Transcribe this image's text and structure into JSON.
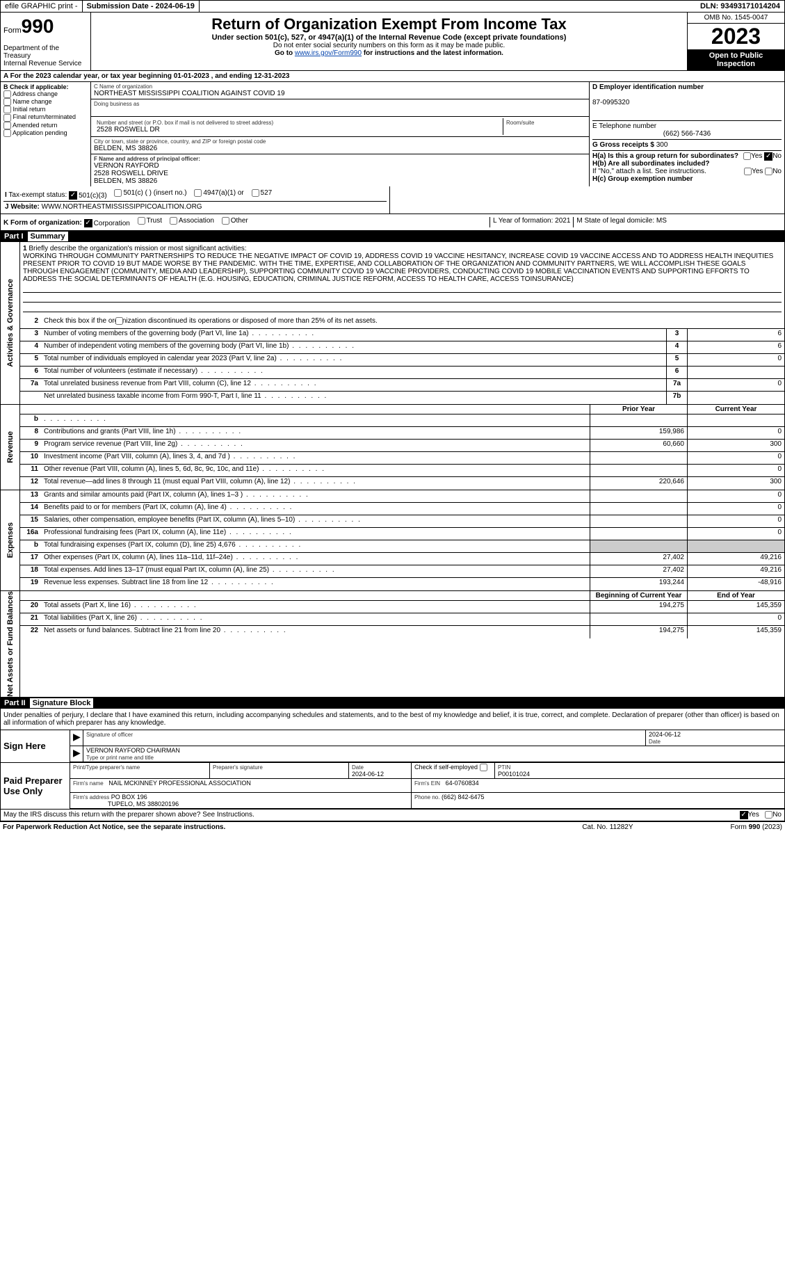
{
  "topbar": {
    "efile": "efile GRAPHIC print -",
    "submission": "Submission Date - 2024-06-19",
    "dln_label": "DLN:",
    "dln": "93493171014204"
  },
  "header": {
    "form_label": "Form",
    "form_num": "990",
    "dept": "Department of the Treasury\nInternal Revenue Service",
    "title": "Return of Organization Exempt From Income Tax",
    "sub": "Under section 501(c), 527, or 4947(a)(1) of the Internal Revenue Code (except private foundations)",
    "note1": "Do not enter social security numbers on this form as it may be made public.",
    "note2_pre": "Go to ",
    "note2_link": "www.irs.gov/Form990",
    "note2_post": " for instructions and the latest information.",
    "omb": "OMB No. 1545-0047",
    "year": "2023",
    "open": "Open to Public Inspection"
  },
  "rowA": "A For the 2023 calendar year, or tax year beginning 01-01-2023    , and ending 12-31-2023",
  "boxB": {
    "title": "B Check if applicable:",
    "items": [
      "Address change",
      "Name change",
      "Initial return",
      "Final return/terminated",
      "Amended return",
      "Application pending"
    ]
  },
  "boxC": {
    "name_lbl": "C Name of organization",
    "name": "NORTHEAST MISSISSIPPI COALITION AGAINST COVID 19",
    "dba_lbl": "Doing business as",
    "street_lbl": "Number and street (or P.O. box if mail is not delivered to street address)",
    "street": "2528 ROSWELL DR",
    "room_lbl": "Room/suite",
    "city_lbl": "City or town, state or province, country, and ZIP or foreign postal code",
    "city": "BELDEN, MS  38826"
  },
  "boxD": {
    "lbl": "D Employer identification number",
    "val": "87-0995320"
  },
  "boxE": {
    "lbl": "E Telephone number",
    "val": "(662) 566-7436"
  },
  "boxG": {
    "lbl": "G Gross receipts $",
    "val": "300"
  },
  "boxF": {
    "lbl": "F Name and address of principal officer:",
    "name": "VERNON RAYFORD",
    "addr1": "2528 ROSWELL DRIVE",
    "addr2": "BELDEN, MS  38826"
  },
  "boxH": {
    "a": "H(a)  Is this a group return for subordinates?",
    "b": "H(b)  Are all subordinates included?",
    "b_note": "If \"No,\" attach a list. See instructions.",
    "c": "H(c)  Group exemption number",
    "yes": "Yes",
    "no": "No"
  },
  "rowI": {
    "lbl": "Tax-exempt status:",
    "o1": "501(c)(3)",
    "o2": "501(c) (  ) (insert no.)",
    "o3": "4947(a)(1) or",
    "o4": "527"
  },
  "rowJ": {
    "lbl": "Website:",
    "val": "WWW.NORTHEASTMISSISSIPPICOALITION.ORG"
  },
  "rowK": {
    "lbl": "K Form of organization:",
    "o1": "Corporation",
    "o2": "Trust",
    "o3": "Association",
    "o4": "Other",
    "L": "L Year of formation: 2021",
    "M": "M State of legal domicile: MS"
  },
  "part1": {
    "hdr": "Part I",
    "title": "Summary",
    "vlab_ag": "Activities & Governance",
    "q1": "Briefly describe the organization's mission or most significant activities:",
    "mission": "WORKING THROUGH COMMUNITY PARTNERSHIPS TO REDUCE THE NEGATIVE IMPACT OF COVID 19, ADDRESS COVID 19 VACCINE HESITANCY, INCREASE COVID 19 VACCINE ACCESS AND TO ADDRESS HEALTH INEQUITIES PRESENT PRIOR TO COVID 19 BUT MADE WORSE BY THE PANDEMIC. WITH THE TIME, EXPERTISE, AND COLLABORATION OF THE ORGANIZATION AND COMMUNITY PARTNERS, WE WILL ACCOMPLISH THESE GOALS THROUGH ENGAGEMENT (COMMUNITY, MEDIA AND LEADERSHIP), SUPPORTING COMMUNITY COVID 19 VACCINE PROVIDERS, CONDUCTING COVID 19 MOBILE VACCINATION EVENTS AND SUPPORTING EFFORTS TO ADDRESS THE SOCIAL DETERMINANTS OF HEALTH (E.G. HOUSING, EDUCATION, CRIMINAL JUSTICE REFORM, ACCESS TO HEALTH CARE, ACCESS TOINSURANCE)",
    "q2": "Check this box       if the organization discontinued its operations or disposed of more than 25% of its net assets.",
    "lines_ag": [
      {
        "n": "3",
        "d": "Number of voting members of the governing body (Part VI, line 1a)",
        "box": "3",
        "v": "6"
      },
      {
        "n": "4",
        "d": "Number of independent voting members of the governing body (Part VI, line 1b)",
        "box": "4",
        "v": "6"
      },
      {
        "n": "5",
        "d": "Total number of individuals employed in calendar year 2023 (Part V, line 2a)",
        "box": "5",
        "v": "0"
      },
      {
        "n": "6",
        "d": "Total number of volunteers (estimate if necessary)",
        "box": "6",
        "v": ""
      },
      {
        "n": "7a",
        "d": "Total unrelated business revenue from Part VIII, column (C), line 12",
        "box": "7a",
        "v": "0"
      },
      {
        "n": "",
        "d": "Net unrelated business taxable income from Form 990-T, Part I, line 11",
        "box": "7b",
        "v": ""
      }
    ],
    "vlab_rev": "Revenue",
    "th_prior": "Prior Year",
    "th_curr": "Current Year",
    "rev": [
      {
        "n": "b",
        "d": "",
        "p": "",
        "c": ""
      },
      {
        "n": "8",
        "d": "Contributions and grants (Part VIII, line 1h)",
        "p": "159,986",
        "c": "0"
      },
      {
        "n": "9",
        "d": "Program service revenue (Part VIII, line 2g)",
        "p": "60,660",
        "c": "300"
      },
      {
        "n": "10",
        "d": "Investment income (Part VIII, column (A), lines 3, 4, and 7d )",
        "p": "",
        "c": "0"
      },
      {
        "n": "11",
        "d": "Other revenue (Part VIII, column (A), lines 5, 6d, 8c, 9c, 10c, and 11e)",
        "p": "",
        "c": "0"
      },
      {
        "n": "12",
        "d": "Total revenue—add lines 8 through 11 (must equal Part VIII, column (A), line 12)",
        "p": "220,646",
        "c": "300"
      }
    ],
    "vlab_exp": "Expenses",
    "exp": [
      {
        "n": "13",
        "d": "Grants and similar amounts paid (Part IX, column (A), lines 1–3 )",
        "p": "",
        "c": "0"
      },
      {
        "n": "14",
        "d": "Benefits paid to or for members (Part IX, column (A), line 4)",
        "p": "",
        "c": "0"
      },
      {
        "n": "15",
        "d": "Salaries, other compensation, employee benefits (Part IX, column (A), lines 5–10)",
        "p": "",
        "c": "0"
      },
      {
        "n": "16a",
        "d": "Professional fundraising fees (Part IX, column (A), line 11e)",
        "p": "",
        "c": "0"
      },
      {
        "n": "b",
        "d": "Total fundraising expenses (Part IX, column (D), line 25) 4,676",
        "p": "SHADE",
        "c": "SHADE"
      },
      {
        "n": "17",
        "d": "Other expenses (Part IX, column (A), lines 11a–11d, 11f–24e)",
        "p": "27,402",
        "c": "49,216"
      },
      {
        "n": "18",
        "d": "Total expenses. Add lines 13–17 (must equal Part IX, column (A), line 25)",
        "p": "27,402",
        "c": "49,216"
      },
      {
        "n": "19",
        "d": "Revenue less expenses. Subtract line 18 from line 12",
        "p": "193,244",
        "c": "-48,916"
      }
    ],
    "vlab_na": "Net Assets or Fund Balances",
    "th_beg": "Beginning of Current Year",
    "th_end": "End of Year",
    "na": [
      {
        "n": "20",
        "d": "Total assets (Part X, line 16)",
        "p": "194,275",
        "c": "145,359"
      },
      {
        "n": "21",
        "d": "Total liabilities (Part X, line 26)",
        "p": "",
        "c": "0"
      },
      {
        "n": "22",
        "d": "Net assets or fund balances. Subtract line 21 from line 20",
        "p": "194,275",
        "c": "145,359"
      }
    ]
  },
  "part2": {
    "hdr": "Part II",
    "title": "Signature Block",
    "intro": "Under penalties of perjury, I declare that I have examined this return, including accompanying schedules and statements, and to the best of my knowledge and belief, it is true, correct, and complete. Declaration of preparer (other than officer) is based on all information of which preparer has any knowledge.",
    "sign_here": "Sign Here",
    "sig_officer": "Signature of officer",
    "sig_date": "2024-06-12",
    "sig_date_lbl": "Date",
    "officer_name": "VERNON RAYFORD CHAIRMAN",
    "type_name_lbl": "Type or print name and title",
    "paid": "Paid Preparer Use Only",
    "prep_name_lbl": "Print/Type preparer's name",
    "prep_sig_lbl": "Preparer's signature",
    "prep_date_lbl": "Date",
    "prep_date": "2024-06-12",
    "check_se": "Check        if self-employed",
    "ptin_lbl": "PTIN",
    "ptin": "P00101024",
    "firm_name_lbl": "Firm's name",
    "firm_name": "NAIL MCKINNEY PROFESSIONAL ASSOCIATION",
    "firm_ein_lbl": "Firm's EIN",
    "firm_ein": "64-0760834",
    "firm_addr_lbl": "Firm's address",
    "firm_addr1": "PO BOX 196",
    "firm_addr2": "TUPELO, MS  388020196",
    "phone_lbl": "Phone no.",
    "phone": "(662) 842-6475",
    "discuss": "May the IRS discuss this return with the preparer shown above? See Instructions.",
    "yes": "Yes",
    "no": "No"
  },
  "footer": {
    "left": "For Paperwork Reduction Act Notice, see the separate instructions.",
    "mid": "Cat. No. 11282Y",
    "right": "Form 990 (2023)"
  }
}
